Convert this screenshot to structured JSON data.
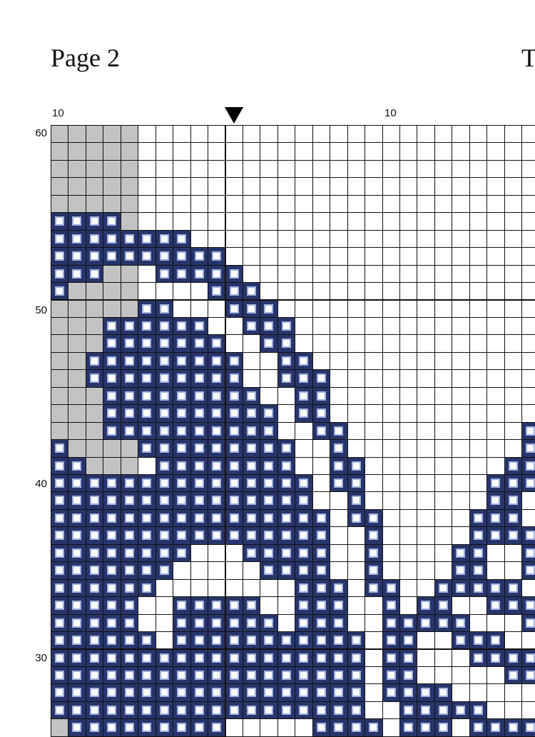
{
  "header": {
    "title": "Page 2",
    "title_right": "T"
  },
  "column_labels": [
    "10",
    "10"
  ],
  "row_labels": [
    "60",
    "50",
    "40",
    "30"
  ],
  "colors": {
    "stitch": "#27356a",
    "unused": "#c3c3c3",
    "empty": "#ffffff"
  },
  "legend_codes": {
    "b": "stitch",
    "g": "unused",
    "w": "empty"
  },
  "pattern_rows": [
    "gggggwwwwwwwwwwwwwwwwwwwwwww",
    "gggggwwwwwwwwwwwwwwwwwwwwwww",
    "gggggwwwwwwwwwwwwwwwwwwwwwww",
    "gggggwwwwwwwwwwwwwwwwwwwwwww",
    "gggggwwwwwwwwwwwwwwwwwwwwwww",
    "bbbbgwwwwwwwwwwwwwwwwwwwwwww",
    "bbbbbbbbwwwwwwwwwwwwwwwwwwww",
    "bbbbbbbbbbwwwwwwwwwwwwwwwwww",
    "bbbggwbbbbbwwwwwwwwwwwwwwwww",
    "bggggwwwwbbbwwwwwwwwwwwwwwww",
    "gggggbbwwwbbbwwwwwwwwwwwwwww",
    "gggbbbbbbwwbbbwwwwwwwwwwwwww",
    "gggbbbbbbbwwbbwwwwwwwwwwwwww",
    "ggbbbbbbbbbwwbbwwwwwwwwwwwww",
    "ggbbbbbbbbbwwbbbwwwwwwwwwwww",
    "gggbbbbbbbbbwwbbwwwwwwwwwwww",
    "gggbbbbbbbbbbwbbwwwwwwwwwwww",
    "gggbbbbbbbbbbwwbbwwwwwwwwwwb",
    "bggggbbbbbbbbbwwbwwwwwwwwwwb",
    "bbgggwbbbbbbbbwwbbwwwwwwwwbb",
    "bbbbbbbbbbbbbbbwbbwwwwwwwbbb",
    "bbbbbbbbbbbbbbbwwbwwwwwwwbbw",
    "bbbbbbbbbbbbbbbbwbbwwwwwbbbw",
    "bbbbbbbbbbbbbbbbwwbwwwwwbbbb",
    "bbbbbbbbwwwbbbbbwwbwwwwbbwwb",
    "bbbbbbbwwwwwbbbbwwbwwwwbbwwb",
    "bbbbbbwwwwwwwwbbbwbbwwbbbbbw",
    "bbbbbwwbbbbbwwbbbwwbwbbwwbbb",
    "bbbbbwwbbbbbbwbbbwwbbbbbwwwb",
    "bbbbbbwbbbbbbbbbbbwbbwwbbbww",
    "bbbbbbbbbbbbbbbbbbwbbwwwbbbb",
    "bbbbbbbbbbbbbbbbbbwbbwwwwwbb",
    "bbbbbbbbbbbbbbbbbbwbbbbwwwww",
    "bbbbbbbbbbbbbbbbbbwwbbbbbwww",
    "gbbbbbbbbbwwwwwbbbbwbbbwbbbb"
  ]
}
